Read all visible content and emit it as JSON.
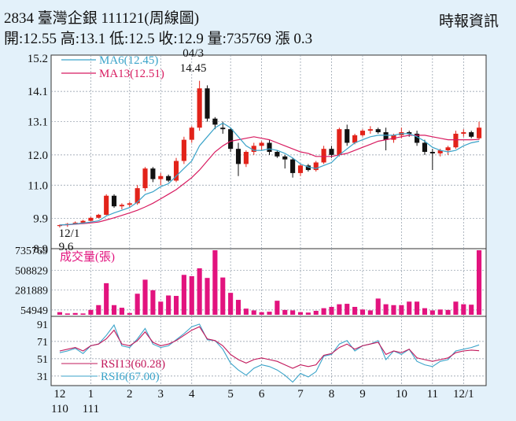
{
  "header": {
    "title": "2834 臺灣企銀 111121(周線圖)",
    "source": "時報資訊",
    "quote": "開:12.55 高:13.1 低:12.5 收:12.9 量:735769 漲 0.3"
  },
  "chart_data": {
    "type": "candlestick",
    "ohlc": [
      [
        9.65,
        9.7,
        9.6,
        9.68
      ],
      [
        9.68,
        9.75,
        9.62,
        9.72
      ],
      [
        9.72,
        9.8,
        9.7,
        9.76
      ],
      [
        9.76,
        9.85,
        9.74,
        9.82
      ],
      [
        9.82,
        9.95,
        9.8,
        9.92
      ],
      [
        9.92,
        10.05,
        9.9,
        10.02
      ],
      [
        10.02,
        10.7,
        10.0,
        10.65
      ],
      [
        10.65,
        10.7,
        10.25,
        10.3
      ],
      [
        10.3,
        10.4,
        10.2,
        10.35
      ],
      [
        10.35,
        10.45,
        10.25,
        10.4
      ],
      [
        10.4,
        11.0,
        10.35,
        10.9
      ],
      [
        10.9,
        11.6,
        10.8,
        11.55
      ],
      [
        11.55,
        11.6,
        11.1,
        11.2
      ],
      [
        11.2,
        11.4,
        11.0,
        11.3
      ],
      [
        11.3,
        11.35,
        11.1,
        11.15
      ],
      [
        11.15,
        11.9,
        11.1,
        11.8
      ],
      [
        11.8,
        12.6,
        11.7,
        12.5
      ],
      [
        12.5,
        12.95,
        12.4,
        12.9
      ],
      [
        12.9,
        14.45,
        12.8,
        14.2
      ],
      [
        14.2,
        14.3,
        13.1,
        13.2
      ],
      [
        13.2,
        13.25,
        12.85,
        13.0
      ],
      [
        12.9,
        13.1,
        12.7,
        12.85
      ],
      [
        12.85,
        12.9,
        12.1,
        12.2
      ],
      [
        12.2,
        12.4,
        11.3,
        11.7
      ],
      [
        11.7,
        12.15,
        11.6,
        12.1
      ],
      [
        12.1,
        12.4,
        12.0,
        12.3
      ],
      [
        12.3,
        12.45,
        12.15,
        12.4
      ],
      [
        12.4,
        12.5,
        12.0,
        12.1
      ],
      [
        12.1,
        12.15,
        11.9,
        11.95
      ],
      [
        11.95,
        12.0,
        11.55,
        11.85
      ],
      [
        11.85,
        11.9,
        11.25,
        11.4
      ],
      [
        11.4,
        11.7,
        11.3,
        11.65
      ],
      [
        11.65,
        11.7,
        11.45,
        11.5
      ],
      [
        11.5,
        11.8,
        11.45,
        11.75
      ],
      [
        11.75,
        12.3,
        11.7,
        12.2
      ],
      [
        12.2,
        12.3,
        11.9,
        12.0
      ],
      [
        12.0,
        12.9,
        11.95,
        12.85
      ],
      [
        12.85,
        13.0,
        12.3,
        12.4
      ],
      [
        12.4,
        12.7,
        12.35,
        12.65
      ],
      [
        12.65,
        12.85,
        12.6,
        12.8
      ],
      [
        12.8,
        12.95,
        12.7,
        12.85
      ],
      [
        12.85,
        12.9,
        12.7,
        12.75
      ],
      [
        12.75,
        12.9,
        12.15,
        12.5
      ],
      [
        12.5,
        12.7,
        12.4,
        12.65
      ],
      [
        12.65,
        12.9,
        12.55,
        12.75
      ],
      [
        12.75,
        12.8,
        12.6,
        12.7
      ],
      [
        12.7,
        12.8,
        12.3,
        12.4
      ],
      [
        12.4,
        12.5,
        12.0,
        12.1
      ],
      [
        12.1,
        12.2,
        11.5,
        12.05
      ],
      [
        12.05,
        12.2,
        11.95,
        12.15
      ],
      [
        12.15,
        12.3,
        12.0,
        12.25
      ],
      [
        12.25,
        12.8,
        12.2,
        12.7
      ],
      [
        12.7,
        12.85,
        12.6,
        12.75
      ],
      [
        12.75,
        12.8,
        12.55,
        12.6
      ],
      [
        12.55,
        13.1,
        12.5,
        12.9
      ]
    ],
    "volume": [
      30000,
      15000,
      20000,
      15000,
      55000,
      110000,
      360000,
      110000,
      80000,
      20000,
      240000,
      400000,
      280000,
      150000,
      220000,
      215000,
      455000,
      440000,
      530000,
      420000,
      735769,
      425000,
      250000,
      170000,
      70000,
      50000,
      30000,
      35000,
      160000,
      55000,
      50000,
      30000,
      25000,
      45000,
      75000,
      90000,
      120000,
      125000,
      90000,
      60000,
      50000,
      185000,
      120000,
      110000,
      110000,
      150000,
      150000,
      75000,
      50000,
      60000,
      55000,
      150000,
      120000,
      115000,
      735769
    ],
    "ma6": [
      9.68,
      9.7,
      9.72,
      9.745,
      9.78,
      9.82,
      9.98,
      10.08,
      10.17,
      10.26,
      10.44,
      10.69,
      10.78,
      10.95,
      11.05,
      11.3,
      11.55,
      11.8,
      12.3,
      12.6,
      12.9,
      13.05,
      12.9,
      12.6,
      12.3,
      12.15,
      12.15,
      12.2,
      12.15,
      12.05,
      11.9,
      11.7,
      11.6,
      11.55,
      11.65,
      11.75,
      12.0,
      12.2,
      12.4,
      12.5,
      12.6,
      12.65,
      12.65,
      12.65,
      12.7,
      12.7,
      12.6,
      12.45,
      12.25,
      12.15,
      12.1,
      12.15,
      12.3,
      12.4,
      12.45
    ],
    "ma13": [
      9.68,
      9.69,
      9.71,
      9.73,
      9.75,
      9.78,
      9.85,
      9.92,
      10.0,
      10.08,
      10.17,
      10.28,
      10.4,
      10.55,
      10.7,
      10.85,
      11.05,
      11.25,
      11.5,
      11.8,
      12.1,
      12.3,
      12.45,
      12.5,
      12.55,
      12.6,
      12.55,
      12.5,
      12.4,
      12.3,
      12.2,
      12.1,
      12.05,
      11.95,
      11.95,
      11.95,
      12.0,
      12.05,
      12.15,
      12.25,
      12.35,
      12.45,
      12.5,
      12.55,
      12.6,
      12.65,
      12.65,
      12.65,
      12.6,
      12.55,
      12.5,
      12.5,
      12.5,
      12.5,
      12.51
    ],
    "rsi6": [
      58,
      60,
      63,
      57,
      66,
      68,
      78,
      90,
      66,
      64,
      74,
      86,
      68,
      64,
      66,
      73,
      80,
      88,
      91,
      73,
      72,
      62,
      46,
      38,
      32,
      40,
      44,
      42,
      38,
      32,
      24,
      34,
      30,
      36,
      54,
      56,
      68,
      72,
      60,
      66,
      68,
      72,
      50,
      60,
      56,
      62,
      48,
      44,
      42,
      48,
      50,
      60,
      62,
      64,
      67
    ],
    "rsi13": [
      60,
      62,
      64,
      60,
      66,
      68,
      74,
      84,
      68,
      66,
      72,
      82,
      70,
      66,
      68,
      72,
      78,
      84,
      88,
      74,
      72,
      66,
      56,
      50,
      46,
      50,
      52,
      50,
      48,
      44,
      40,
      44,
      42,
      44,
      55,
      57,
      64,
      68,
      62,
      66,
      68,
      70,
      56,
      60,
      58,
      62,
      52,
      50,
      48,
      50,
      52,
      58,
      60,
      61,
      60.28
    ],
    "price_axis": {
      "ylim": [
        8.9,
        15.3
      ],
      "ticks": [
        "15.2",
        "14.1",
        "13.1",
        "12.0",
        "11.0",
        "9.9",
        "8.9"
      ]
    },
    "volume_axis": {
      "ticks": [
        "735769",
        "508829",
        "281889",
        "54949"
      ],
      "label": "成交量(張)"
    },
    "rsi_axis": {
      "ticks": [
        "91",
        "71",
        "51",
        "31"
      ]
    },
    "x_ticks": [
      {
        "label": "12",
        "sub": "110"
      },
      {
        "label": "1",
        "sub": "111"
      },
      {
        "label": "2",
        "sub": ""
      },
      {
        "label": "3",
        "sub": ""
      },
      {
        "label": "4",
        "sub": ""
      },
      {
        "label": "5",
        "sub": ""
      },
      {
        "label": "6",
        "sub": ""
      },
      {
        "label": "7",
        "sub": ""
      },
      {
        "label": "8",
        "sub": ""
      },
      {
        "label": "9",
        "sub": ""
      },
      {
        "label": "10",
        "sub": ""
      },
      {
        "label": "11",
        "sub": ""
      },
      {
        "label": "12/1",
        "sub": ""
      }
    ],
    "legend": {
      "ma6": "MA6(12.45)",
      "ma13": "MA13(12.51)",
      "rsi13": "RSI13(60.28)",
      "rsi6": "RSI6(67.00)"
    },
    "annotations": {
      "high_date": "04/3",
      "high_value": "14.45",
      "low_date": "12/1",
      "low_value": "9.6"
    },
    "colors": {
      "up": "#e2231a",
      "down": "#111111",
      "volume": "#e2137e",
      "ma6": "#3aa3c9",
      "ma13": "#d81b60",
      "rsi6": "#3aa3c9",
      "rsi13": "#c2185b",
      "grid": "#8a96a3",
      "plot_bg": "#ffffff"
    }
  }
}
